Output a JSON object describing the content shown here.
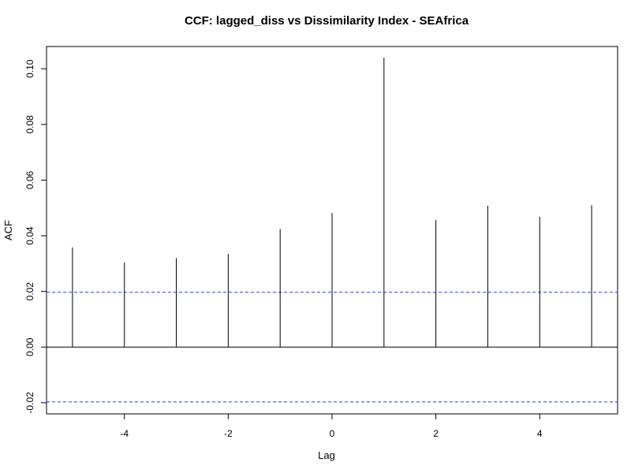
{
  "chart_data": {
    "type": "bar",
    "title": "CCF: lagged_diss vs Dissimilarity Index - SEAfrica",
    "xlabel": "Lag",
    "ylabel": "ACF",
    "x": [
      -5,
      -4,
      -3,
      -2,
      -1,
      0,
      1,
      2,
      3,
      4,
      5
    ],
    "values": [
      0.0358,
      0.0304,
      0.032,
      0.0335,
      0.0424,
      0.0482,
      0.104,
      0.0457,
      0.0508,
      0.0468,
      0.051
    ],
    "xlim": [
      -5.5,
      5.5
    ],
    "ylim": [
      -0.024,
      0.108
    ],
    "x_ticks": [
      -4,
      -2,
      0,
      2,
      4
    ],
    "x_tick_labels": [
      "-4",
      "-2",
      "0",
      "2",
      "4"
    ],
    "y_ticks": [
      -0.02,
      0.0,
      0.02,
      0.04,
      0.06,
      0.08,
      0.1
    ],
    "y_tick_labels": [
      "-0.02",
      "0.00",
      "0.02",
      "0.04",
      "0.06",
      "0.08",
      "0.10"
    ],
    "confidence_bounds": [
      0.0197,
      -0.0197
    ],
    "zero_line": 0,
    "grid": false,
    "colors": {
      "bars": "#000000",
      "confidence": "#3333ff",
      "axes": "#000000"
    }
  }
}
